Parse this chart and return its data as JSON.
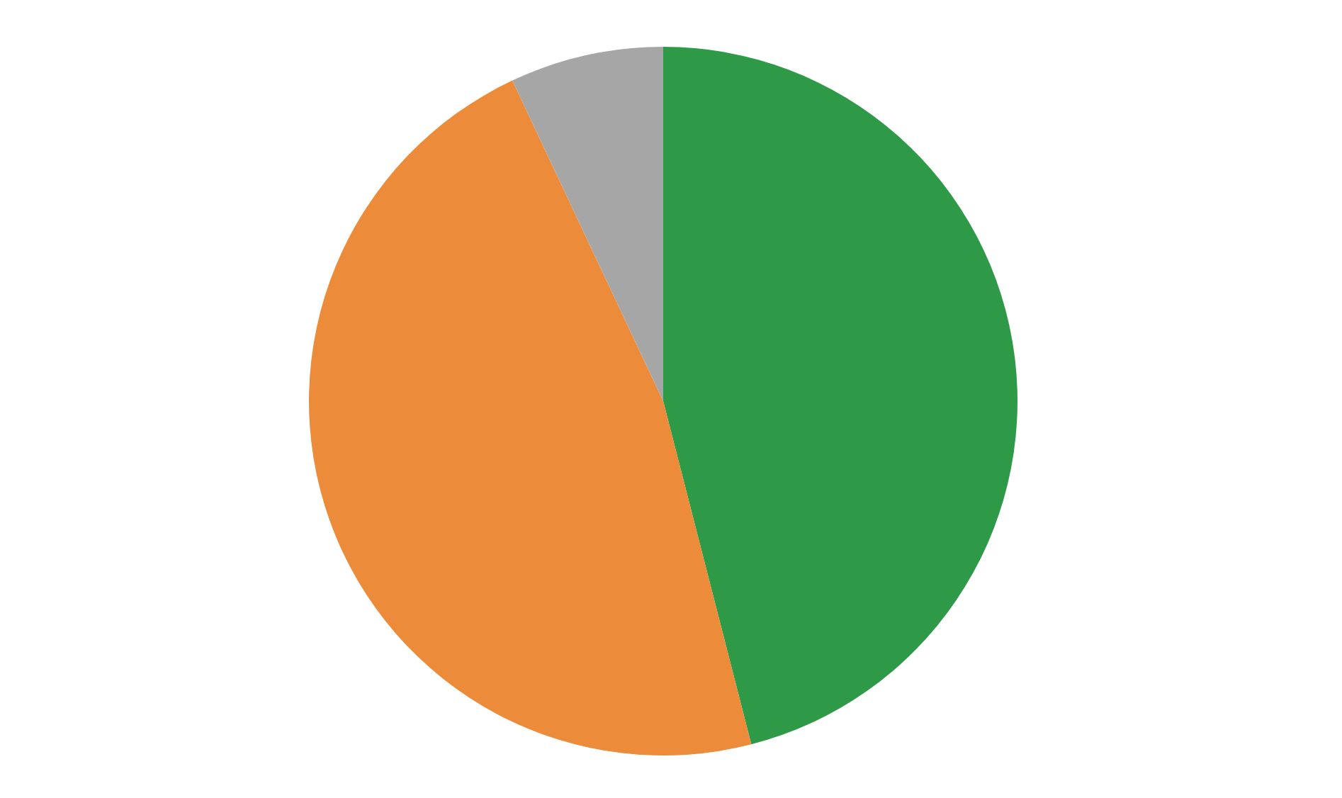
{
  "chart_data": {
    "type": "pie",
    "categories": [
      null,
      null,
      null
    ],
    "values": [
      46,
      47,
      7
    ],
    "colors": [
      "#2e9a47",
      "#ec8b3a",
      "#a6a6a6"
    ]
  }
}
